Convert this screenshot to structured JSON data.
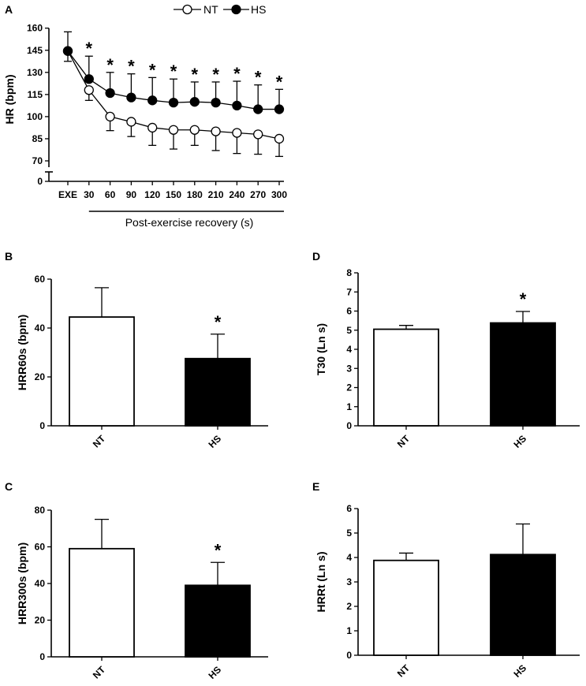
{
  "legend": {
    "series1": "NT",
    "series2": "HS"
  },
  "colors": {
    "NT": "#ffffff",
    "HS": "#000000",
    "axis": "#000000"
  },
  "chart_data": [
    {
      "panel": "A",
      "type": "line",
      "ylabel": "HR (bpm)",
      "xlabel": "Post-exercise recovery (s)",
      "categories": [
        "EXE",
        "30",
        "60",
        "90",
        "120",
        "150",
        "180",
        "210",
        "240",
        "270",
        "300"
      ],
      "yticks": [
        0,
        70,
        85,
        100,
        115,
        130,
        145,
        160
      ],
      "axis_break": true,
      "series": [
        {
          "name": "NT",
          "values": [
            144.5,
            118,
            100,
            96.5,
            92.5,
            91,
            91,
            90,
            89,
            88,
            85
          ],
          "err_down": [
            7,
            7,
            9.5,
            10,
            12,
            13,
            10.5,
            13,
            14,
            13.5,
            12
          ]
        },
        {
          "name": "HS",
          "values": [
            144.5,
            125.5,
            116,
            113,
            111,
            109.5,
            110,
            109.5,
            107.5,
            105,
            105
          ],
          "err_up": [
            13,
            15.5,
            14,
            16,
            15.5,
            16,
            13.5,
            14,
            16.5,
            16.5,
            13.5
          ]
        }
      ],
      "significance": [
        "",
        "*",
        "*",
        "*",
        "*",
        "*",
        "*",
        "*",
        "*",
        "*",
        "*"
      ]
    },
    {
      "panel": "B",
      "type": "bar",
      "ylabel": "HRR60s (bpm)",
      "categories": [
        "NT",
        "HS"
      ],
      "values": [
        44.5,
        27.5
      ],
      "err": [
        12,
        10
      ],
      "ylim": [
        0,
        60
      ],
      "yticks": [
        0,
        20,
        40,
        60
      ],
      "significance": [
        "",
        "*"
      ]
    },
    {
      "panel": "C",
      "type": "bar",
      "ylabel": "HRR300s (bpm)",
      "categories": [
        "NT",
        "HS"
      ],
      "values": [
        59,
        39
      ],
      "err": [
        16,
        12.5
      ],
      "ylim": [
        0,
        80
      ],
      "yticks": [
        0,
        20,
        40,
        60,
        80
      ],
      "significance": [
        "",
        "*"
      ]
    },
    {
      "panel": "D",
      "type": "bar",
      "ylabel": "T30 (Ln s)",
      "categories": [
        "NT",
        "HS"
      ],
      "values": [
        5.05,
        5.38
      ],
      "err": [
        0.2,
        0.6
      ],
      "ylim": [
        0,
        8
      ],
      "yticks": [
        0,
        1,
        2,
        3,
        4,
        5,
        6,
        7,
        8
      ],
      "significance": [
        "",
        "*"
      ]
    },
    {
      "panel": "E",
      "type": "bar",
      "ylabel": "HRRt (Ln s)",
      "categories": [
        "NT",
        "HS"
      ],
      "values": [
        3.88,
        4.12
      ],
      "err": [
        0.3,
        1.25
      ],
      "ylim": [
        0,
        6
      ],
      "yticks": [
        0,
        1,
        2,
        3,
        4,
        5,
        6
      ],
      "significance": [
        "",
        ""
      ]
    }
  ]
}
